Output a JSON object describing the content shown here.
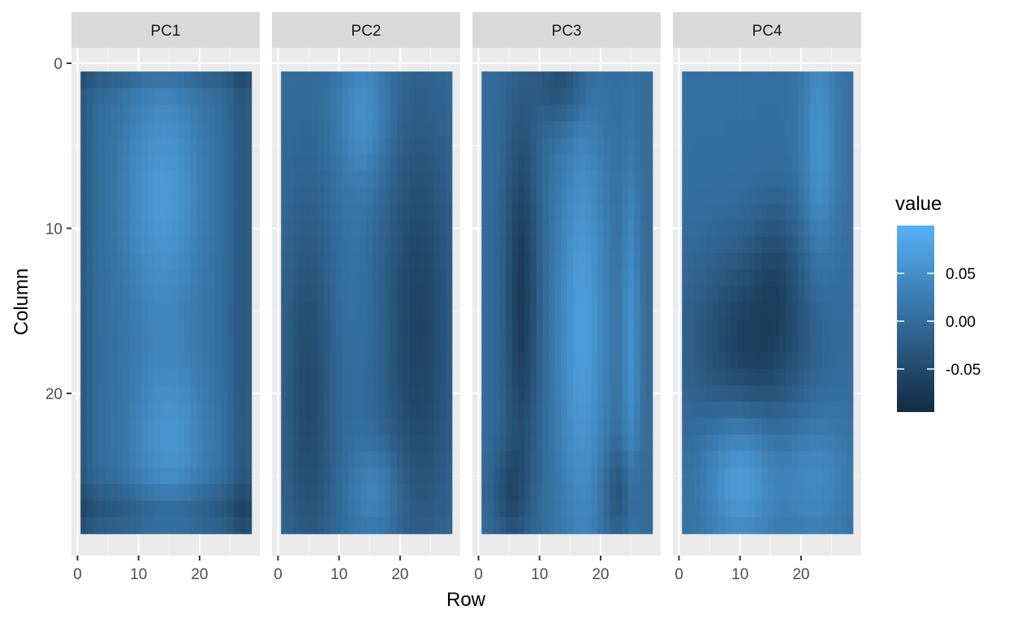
{
  "chart_data": {
    "type": "heatmap",
    "facets": [
      "PC1",
      "PC2",
      "PC3",
      "PC4"
    ],
    "xlabel": "Row",
    "ylabel": "Column",
    "x_range": [
      0,
      28
    ],
    "y_range": [
      0,
      28
    ],
    "x_ticks": [
      0,
      10,
      20
    ],
    "y_ticks": [
      0,
      10,
      20
    ],
    "y_reversed": true,
    "grid": true,
    "legend": {
      "title": "value",
      "placement": "right",
      "ticks": [
        {
          "label": "0.05",
          "value": 0.05
        },
        {
          "label": "0.00",
          "value": 0.0
        },
        {
          "label": "-0.05",
          "value": -0.05
        }
      ],
      "range": [
        -0.095,
        0.1
      ],
      "color_low": "#132B43",
      "color_high": "#56B1F7"
    },
    "colors": {
      "low": "#132B43",
      "high": "#56B1F7",
      "panel_bg": "#EBEBEB",
      "strip_bg": "#D9D9D9"
    }
  }
}
